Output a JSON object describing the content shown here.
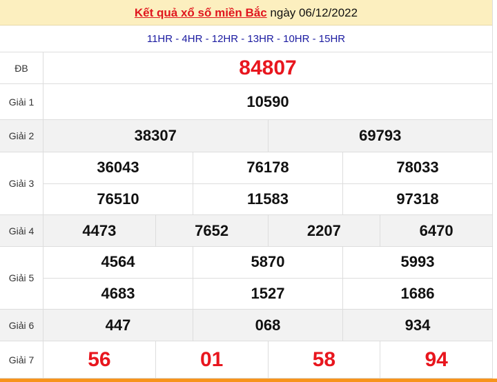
{
  "header": {
    "title_link": "Kết quả xổ số miền Bắc",
    "date_text": "ngày 06/12/2022"
  },
  "codes": "11HR - 4HR - 12HR - 13HR - 10HR - 15HR",
  "prizes": [
    {
      "label": "ĐB",
      "rows": [
        [
          "84807"
        ]
      ]
    },
    {
      "label": "Giải 1",
      "rows": [
        [
          "10590"
        ]
      ]
    },
    {
      "label": "Giải 2",
      "rows": [
        [
          "38307",
          "69793"
        ]
      ]
    },
    {
      "label": "Giải 3",
      "rows": [
        [
          "36043",
          "76178",
          "78033"
        ],
        [
          "76510",
          "11583",
          "97318"
        ]
      ]
    },
    {
      "label": "Giải 4",
      "rows": [
        [
          "4473",
          "7652",
          "2207",
          "6470"
        ]
      ]
    },
    {
      "label": "Giải 5",
      "rows": [
        [
          "4564",
          "5870",
          "5993"
        ],
        [
          "4683",
          "1527",
          "1686"
        ]
      ]
    },
    {
      "label": "Giải 6",
      "rows": [
        [
          "447",
          "068",
          "934"
        ]
      ]
    },
    {
      "label": "Giải 7",
      "rows": [
        [
          "56",
          "01",
          "58",
          "94"
        ]
      ]
    }
  ],
  "colors": {
    "accent_red": "#e8161e",
    "header_bg": "#fcefbf",
    "codes_blue": "#1a1aa0",
    "bottom_bar": "#f7941d"
  }
}
